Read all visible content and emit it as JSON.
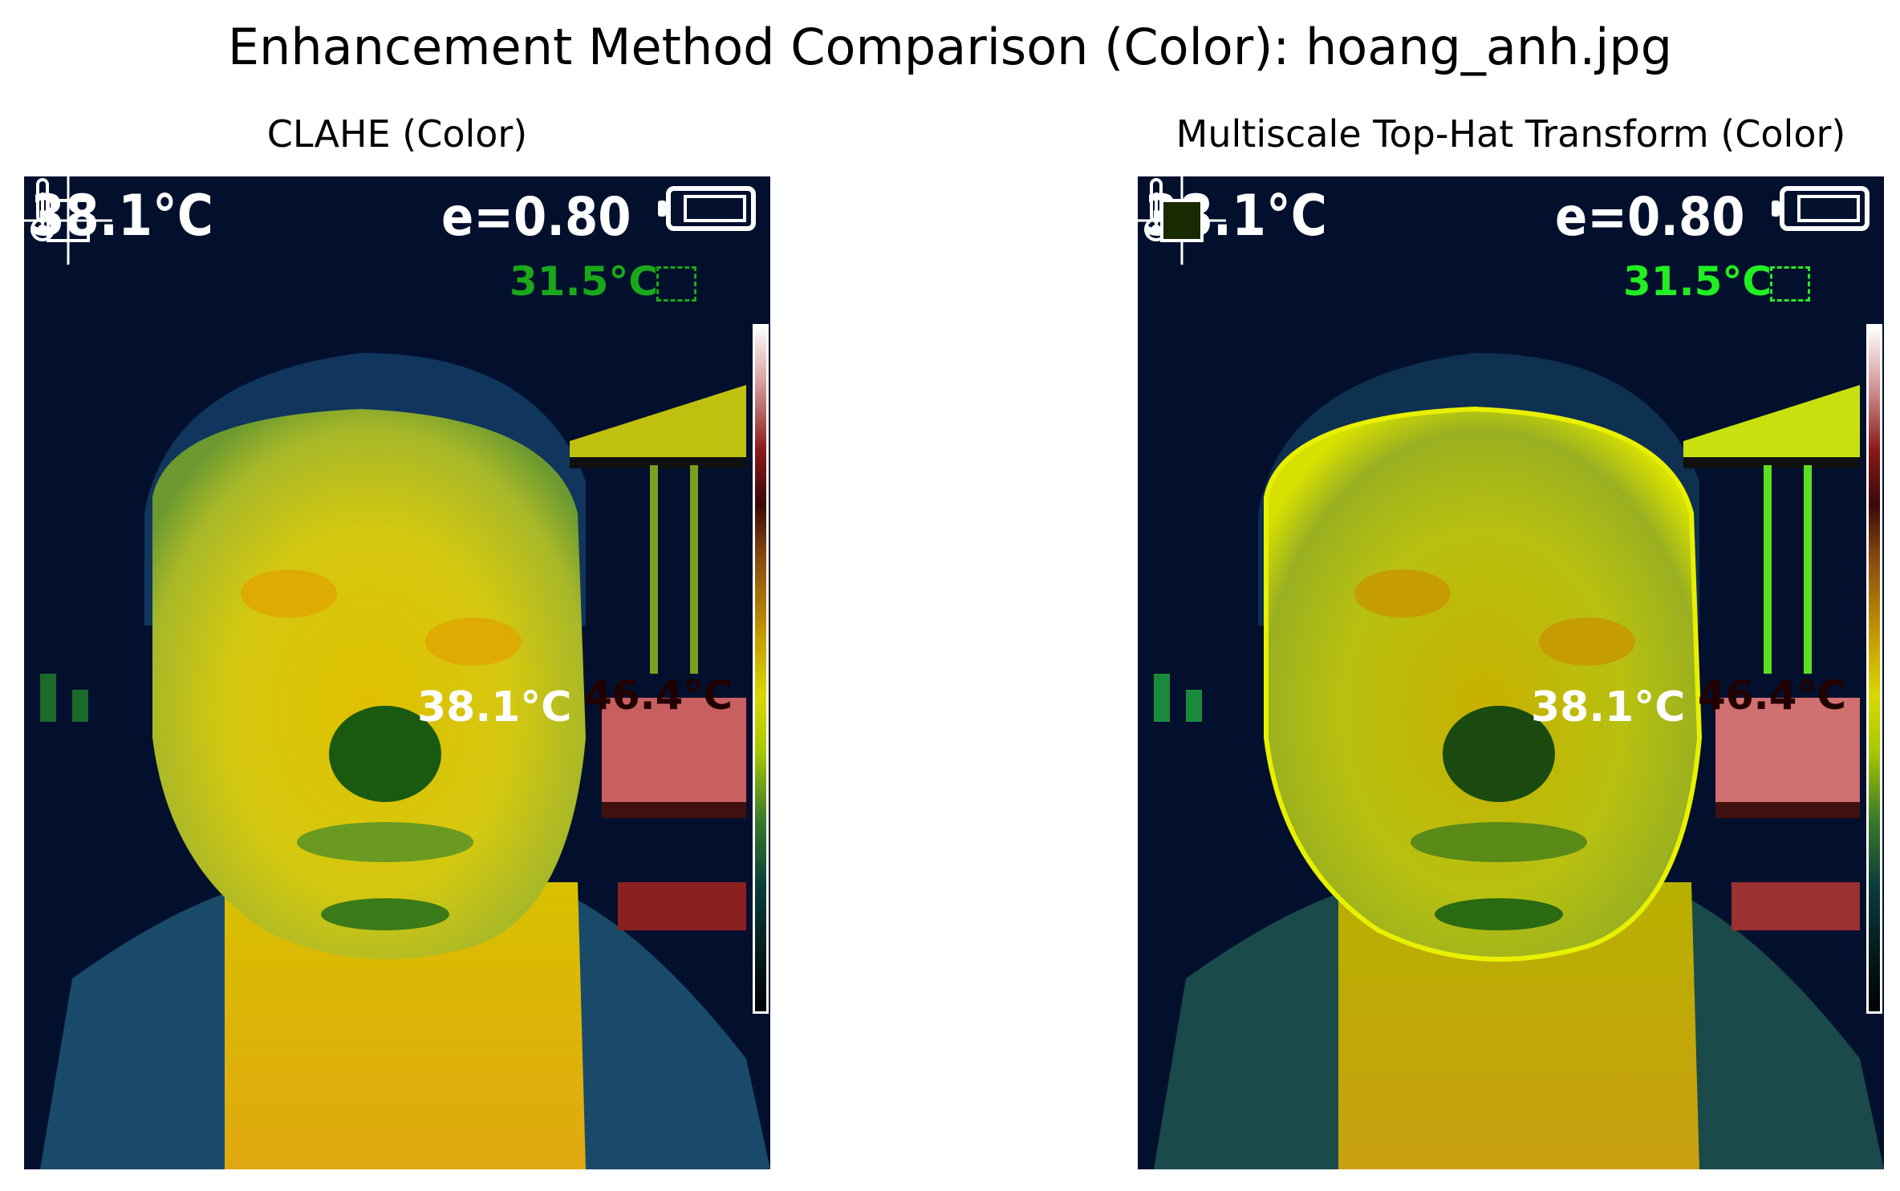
{
  "figure": {
    "title": "Enhancement Method Comparison (Color): hoang_anh.jpg"
  },
  "panels": [
    {
      "title": "CLAHE (Color)",
      "hud": {
        "main_temp": "38.1°C",
        "emissivity": "e=0.80",
        "reference_temp": "31.5°C",
        "spot_temp": "38.1°C",
        "hot_temp": "46.4°C"
      }
    },
    {
      "title": "Multiscale Top-Hat Transform (Color)",
      "hud": {
        "main_temp": "38.1°C",
        "emissivity": "e=0.80",
        "reference_temp": "31.5°C",
        "spot_temp": "38.1°C",
        "hot_temp": "46.4°C"
      }
    }
  ],
  "colors": {
    "background": "#02102e",
    "face_warm": "#d8c400",
    "face_cool": "#8fb030",
    "hot_object": "#c86060",
    "reference_text_left": "#1aa81a",
    "reference_text_right": "#22ee22"
  }
}
